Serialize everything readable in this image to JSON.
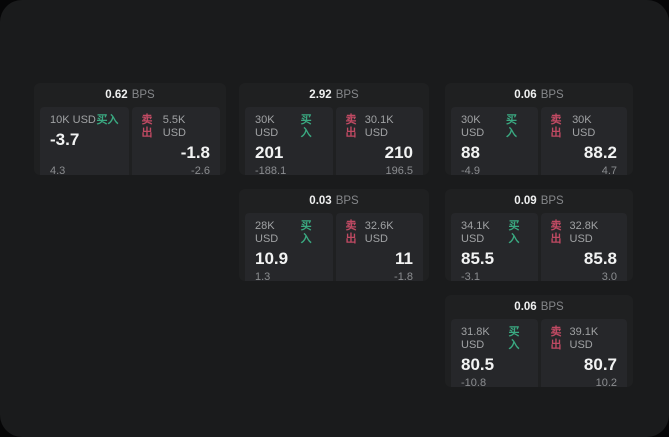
{
  "labels": {
    "bps_unit": "BPS",
    "buy": "买入",
    "sell": "卖出"
  },
  "colors": {
    "page_bg": "#1a1b1c",
    "card_bg": "#1f2021",
    "tile_bg": "#26272a",
    "buy_green": "#3aa981",
    "sell_red": "#c04a63"
  },
  "columns": [
    {
      "cards": [
        {
          "bps": "0.62",
          "buy": {
            "amount": "10K USD",
            "value": "-3.7",
            "sub": "4.3"
          },
          "sell": {
            "amount": "5.5K USD",
            "value": "-1.8",
            "sub": "-2.6"
          }
        }
      ]
    },
    {
      "cards": [
        {
          "bps": "2.92",
          "buy": {
            "amount": "30K USD",
            "value": "201",
            "sub": "-188.1"
          },
          "sell": {
            "amount": "30.1K USD",
            "value": "210",
            "sub": "196.5"
          }
        },
        {
          "bps": "0.03",
          "buy": {
            "amount": "28K USD",
            "value": "10.9",
            "sub": "1.3"
          },
          "sell": {
            "amount": "32.6K USD",
            "value": "11",
            "sub": "-1.8"
          }
        }
      ]
    },
    {
      "cards": [
        {
          "bps": "0.06",
          "buy": {
            "amount": "30K USD",
            "value": "88",
            "sub": "-4.9"
          },
          "sell": {
            "amount": "30K USD",
            "value": "88.2",
            "sub": "4.7"
          }
        },
        {
          "bps": "0.09",
          "buy": {
            "amount": "34.1K USD",
            "value": "85.5",
            "sub": "-3.1"
          },
          "sell": {
            "amount": "32.8K USD",
            "value": "85.8",
            "sub": "3.0"
          }
        },
        {
          "bps": "0.06",
          "buy": {
            "amount": "31.8K USD",
            "value": "80.5",
            "sub": "-10.8"
          },
          "sell": {
            "amount": "39.1K USD",
            "value": "80.7",
            "sub": "10.2"
          }
        }
      ]
    }
  ]
}
